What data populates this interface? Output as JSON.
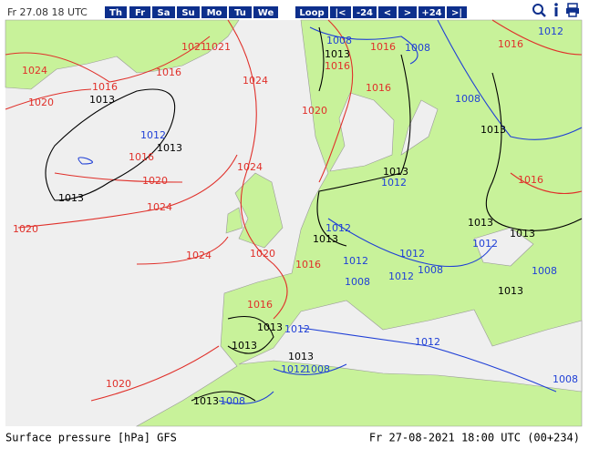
{
  "header": {
    "run": "Fr 27.08 18 UTC",
    "days": [
      "Th",
      "Fr",
      "Sa",
      "Su",
      "Mo",
      "Tu",
      "We"
    ],
    "nav": [
      "Loop",
      "|<",
      "-24",
      "<",
      ">",
      "+24",
      ">|"
    ]
  },
  "map": {
    "isobar_labels": [
      {
        "color": "#e0302a",
        "labels": [
          1024,
          1021,
          1021,
          1016,
          1016,
          1020,
          1024,
          1020,
          1016,
          1016,
          1016,
          1016,
          1020,
          1024,
          1024,
          1020,
          1024,
          1020,
          1016,
          1016,
          1020,
          1016,
          1016
        ]
      },
      {
        "color": "#1f3fd6",
        "labels": [
          1008,
          1008,
          1012,
          1008,
          1012,
          1012,
          1012,
          1012,
          1012,
          1008,
          1008,
          1012,
          1012,
          1008,
          1012,
          1012,
          1012,
          1008,
          1008,
          1008
        ]
      },
      {
        "color": "#000000",
        "labels": [
          1013,
          1013,
          1013,
          1013,
          1013,
          1013,
          1013,
          1013,
          1013,
          1013,
          1013,
          1013,
          1013,
          1013
        ]
      }
    ]
  },
  "footer": {
    "product": "Surface pressure [hPa] GFS",
    "valid": "Fr 27-08-2021 18:00 UTC (00+234)"
  }
}
